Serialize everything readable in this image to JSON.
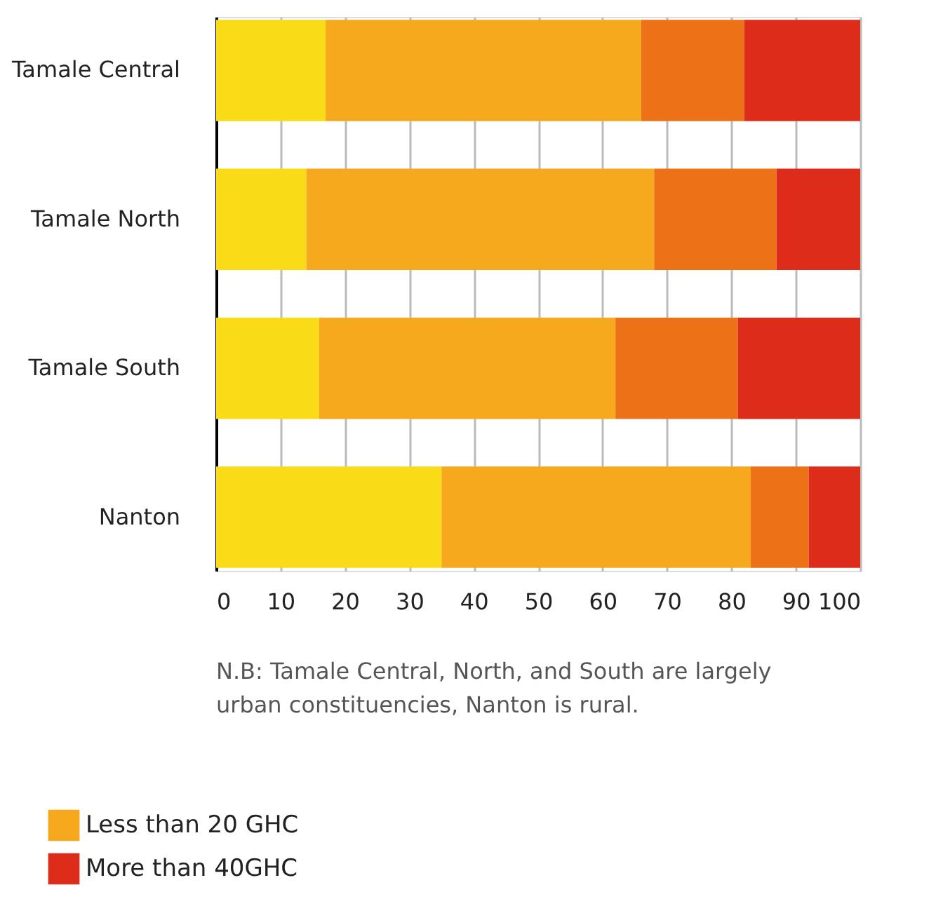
{
  "chart_data": {
    "type": "bar",
    "orientation": "horizontal",
    "stacked": true,
    "categories": [
      "Tamale Central",
      "Tamale North",
      "Tamale South",
      "Nanton"
    ],
    "series": [
      {
        "color": "#f9dc17",
        "values": [
          17,
          14,
          16,
          35
        ]
      },
      {
        "name": "Less than 20 GHC",
        "color": "#f6a91c",
        "values": [
          49,
          54,
          46,
          48
        ]
      },
      {
        "color": "#ec7117",
        "values": [
          16,
          19,
          19,
          9
        ]
      },
      {
        "name": "More than 40GHC",
        "color": "#dd2c19",
        "values": [
          18,
          13,
          19,
          8
        ]
      }
    ],
    "xlim": [
      0,
      100
    ],
    "xticks": [
      0,
      10,
      20,
      30,
      40,
      50,
      60,
      70,
      80,
      90,
      100
    ],
    "grid": "x",
    "legend": "bottom left",
    "annotations": [
      "N.B: Tamale Central, North, and South are largely urban constituencies, Nanton is rural."
    ]
  }
}
